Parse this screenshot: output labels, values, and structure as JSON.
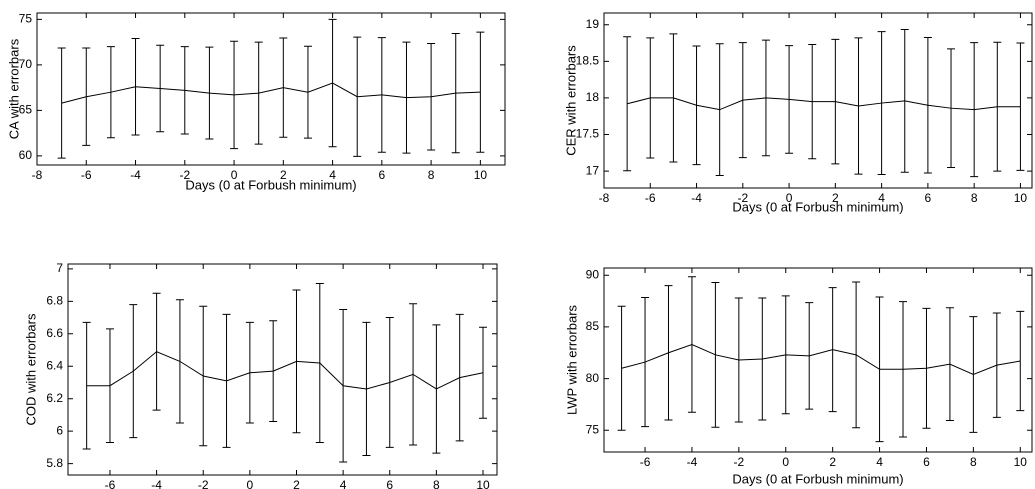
{
  "chart_data": [
    {
      "type": "line",
      "color": "#000000",
      "x": [
        -7,
        -6,
        -5,
        -4,
        -3,
        -2,
        -1,
        0,
        1,
        2,
        3,
        4,
        5,
        6,
        7,
        8,
        9,
        10
      ],
      "values": [
        65.8,
        66.5,
        67.0,
        67.6,
        67.4,
        67.2,
        66.9,
        66.7,
        66.9,
        67.5,
        67.0,
        68.0,
        66.5,
        66.7,
        66.4,
        66.5,
        66.9,
        67.0
      ],
      "errors": [
        6.05,
        5.35,
        5.0,
        5.3,
        4.75,
        4.8,
        5.05,
        5.9,
        5.6,
        5.45,
        5.05,
        7.0,
        6.55,
        6.3,
        6.1,
        5.85,
        6.55,
        6.6
      ],
      "xlabel": "Days (0 at Forbush minimum)",
      "ylabel": "CA with errorbars",
      "xlim": [
        -8,
        11
      ],
      "ylim": [
        59,
        75.7
      ],
      "xticks": [
        -8,
        -6,
        -4,
        -2,
        0,
        2,
        4,
        6,
        8,
        10
      ],
      "yticks": [
        60,
        65,
        70,
        75
      ]
    },
    {
      "type": "line",
      "color": "#000000",
      "x": [
        -7,
        -6,
        -5,
        -4,
        -3,
        -2,
        -1,
        0,
        1,
        2,
        3,
        4,
        5,
        6,
        7,
        8,
        9,
        10
      ],
      "values": [
        17.92,
        18.0,
        18.0,
        17.9,
        17.84,
        17.97,
        18.0,
        17.98,
        17.95,
        17.95,
        17.89,
        17.93,
        17.96,
        17.9,
        17.86,
        17.84,
        17.88,
        17.88
      ],
      "errors": [
        0.915,
        0.82,
        0.875,
        0.81,
        0.9,
        0.785,
        0.79,
        0.735,
        0.78,
        0.85,
        0.93,
        0.975,
        0.975,
        0.925,
        0.81,
        0.915,
        0.88,
        0.87
      ],
      "xlabel": "Days (0 at Forbush minimum)",
      "ylabel": "CER with errorbars",
      "xlim": [
        -8,
        10.5
      ],
      "ylim": [
        16.77,
        19.16
      ],
      "xticks": [
        -8,
        -6,
        -4,
        -2,
        0,
        2,
        4,
        6,
        8,
        10
      ],
      "yticks": [
        17,
        17.5,
        18,
        18.5,
        19
      ]
    },
    {
      "type": "line",
      "color": "#000000",
      "x": [
        -7,
        -6,
        -5,
        -4,
        -3,
        -2,
        -1,
        0,
        1,
        2,
        3,
        4,
        5,
        6,
        7,
        8,
        9,
        10
      ],
      "values": [
        6.28,
        6.28,
        6.37,
        6.49,
        6.43,
        6.34,
        6.31,
        6.36,
        6.37,
        6.43,
        6.42,
        6.28,
        6.26,
        6.3,
        6.35,
        6.26,
        6.33,
        6.36
      ],
      "errors": [
        0.39,
        0.35,
        0.41,
        0.36,
        0.38,
        0.43,
        0.41,
        0.31,
        0.31,
        0.44,
        0.49,
        0.47,
        0.41,
        0.4,
        0.435,
        0.395,
        0.39,
        0.28
      ],
      "xlabel": "Days (0 at Forbush minimum)",
      "ylabel": "COD with errorbars",
      "xlim": [
        -7.8,
        10.6
      ],
      "ylim": [
        5.73,
        7.03
      ],
      "xticks": [
        -6,
        -4,
        -2,
        0,
        2,
        4,
        6,
        8,
        10
      ],
      "yticks": [
        5.8,
        6,
        6.2,
        6.4,
        6.6,
        6.8,
        7
      ]
    },
    {
      "type": "line",
      "color": "#000000",
      "x": [
        -7,
        -6,
        -5,
        -4,
        -3,
        -2,
        -1,
        0,
        1,
        2,
        3,
        4,
        5,
        6,
        7,
        8,
        9,
        10
      ],
      "values": [
        81.0,
        81.6,
        82.5,
        83.3,
        82.3,
        81.8,
        81.9,
        82.3,
        82.2,
        82.8,
        82.3,
        80.9,
        80.9,
        81.0,
        81.4,
        80.4,
        81.3,
        81.7
      ],
      "errors": [
        6.0,
        6.25,
        6.5,
        6.55,
        7.0,
        6.0,
        5.9,
        5.7,
        5.15,
        6.0,
        7.05,
        7.0,
        6.55,
        5.8,
        5.45,
        5.6,
        5.05,
        4.8
      ],
      "xlabel": "Days (0 at Forbush minimum)",
      "ylabel": "LWP with errorbars",
      "xlim": [
        -7.75,
        10.5
      ],
      "ylim": [
        72.9,
        90.7
      ],
      "xticks": [
        -6,
        -4,
        -2,
        0,
        2,
        4,
        6,
        8,
        10
      ],
      "yticks": [
        75,
        80,
        85,
        90
      ]
    }
  ]
}
